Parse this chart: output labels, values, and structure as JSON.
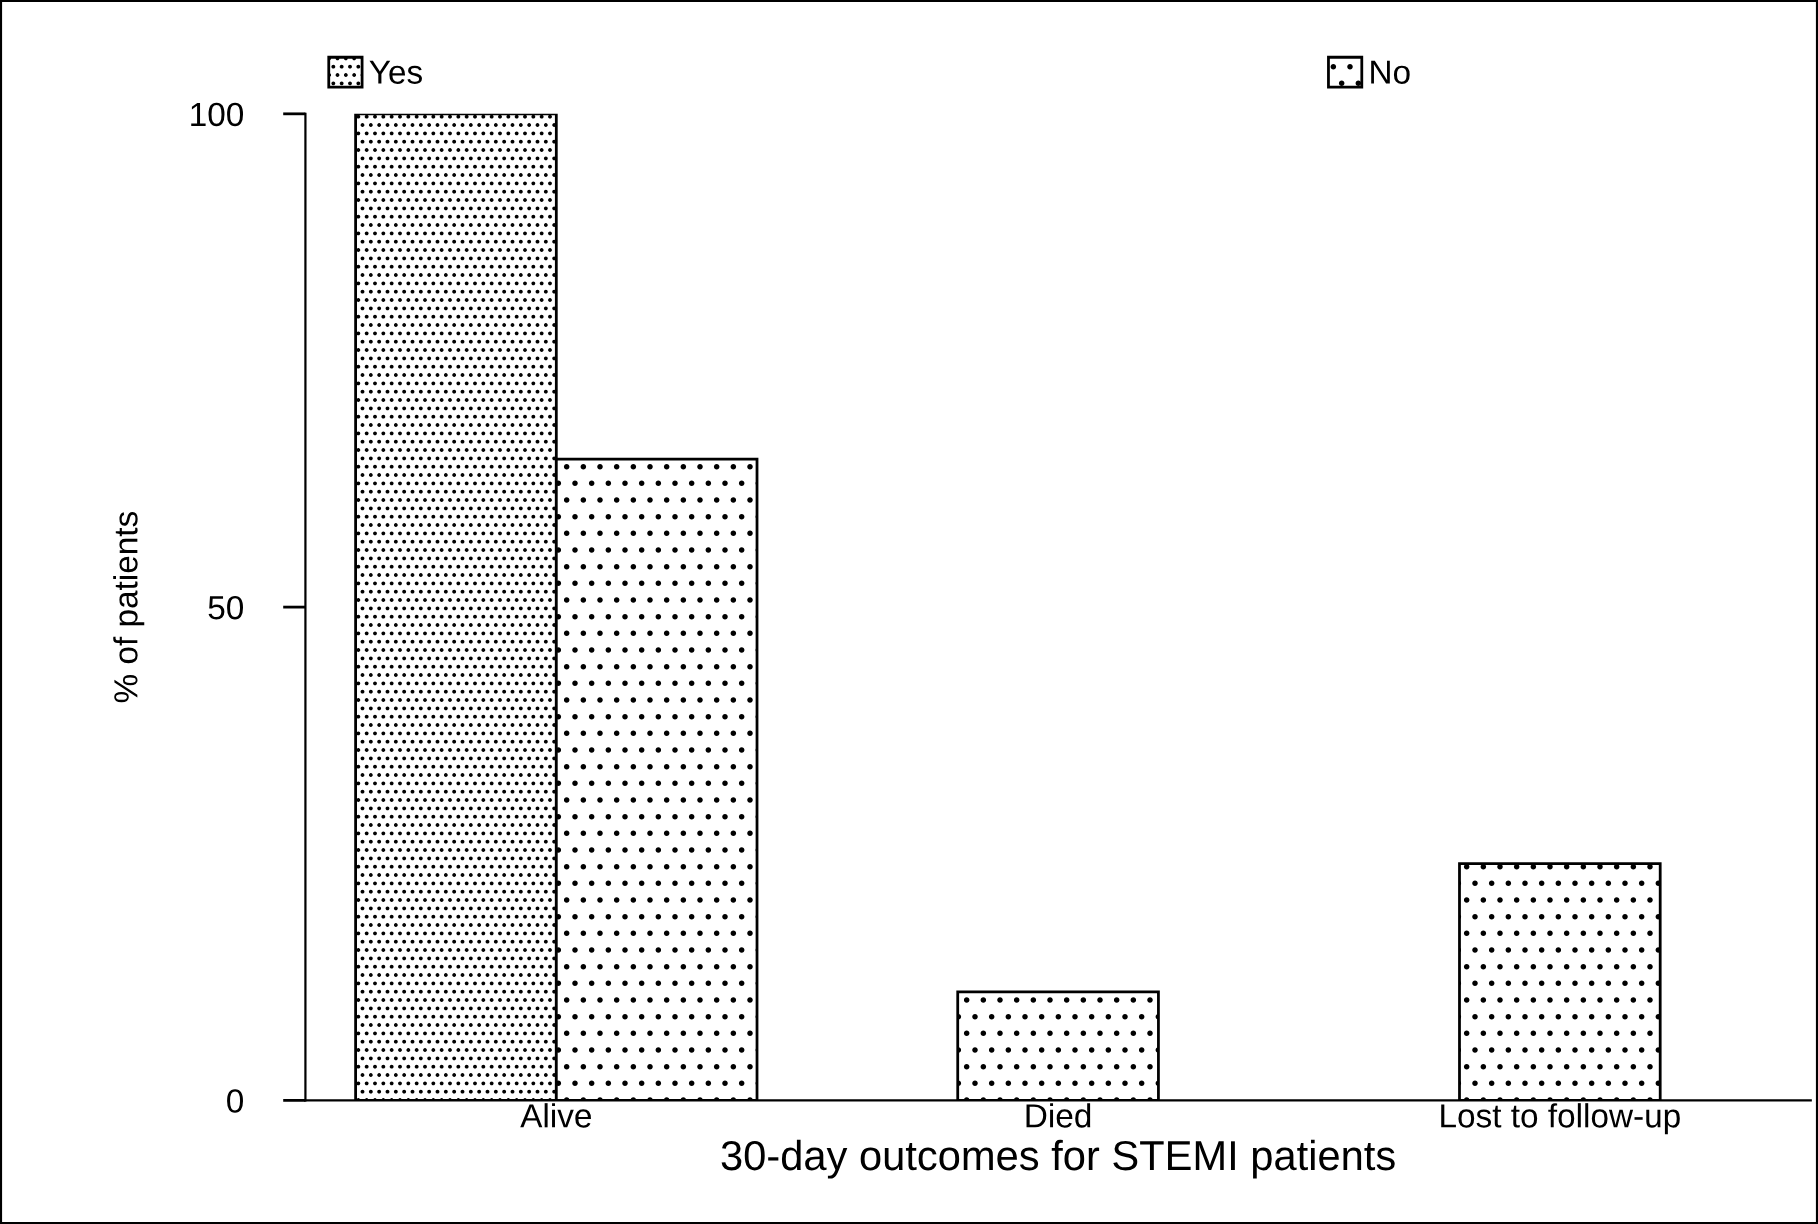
{
  "chart_data": {
    "type": "bar",
    "xlabel": "30-day outcomes for STEMI patients",
    "ylabel": "% of patients",
    "categories": [
      "Alive",
      "Died",
      "Lost to follow-up"
    ],
    "series": [
      {
        "name": "Yes",
        "color": "#000000",
        "values": [
          100,
          null,
          null
        ]
      },
      {
        "name": "No",
        "color": "#000000",
        "values": [
          65,
          11,
          24
        ]
      }
    ],
    "ylim": [
      0,
      100
    ],
    "yticks": [
      0,
      50,
      100
    ],
    "grid": false,
    "legend": "top"
  }
}
